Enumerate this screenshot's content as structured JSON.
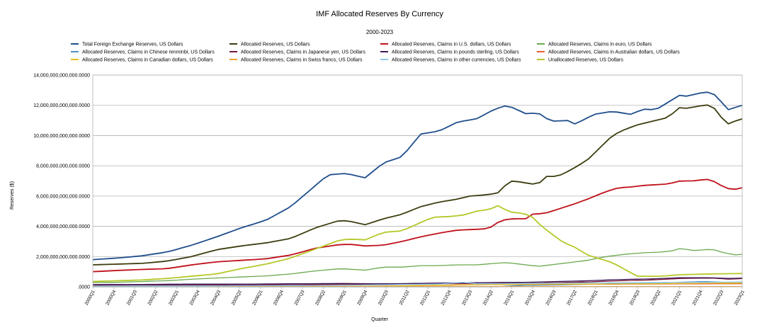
{
  "chart_data": {
    "type": "line",
    "title": "IMF Allocated Reserves By Currency",
    "subtitle": "2000-2023",
    "xlabel": "Quarter",
    "ylabel": "Reserves ($)",
    "ylim": [
      0,
      14000000000000
    ],
    "yticks": [
      0,
      2000000000000,
      4000000000000,
      6000000000000,
      8000000000000,
      10000000000000,
      12000000000000,
      14000000000000
    ],
    "ytick_labels": [
      ".0000",
      "2,000,000,000,000.0000",
      "4,000,000,000,000.0000",
      "6,000,000,000,000.0000",
      "8,000,000,000,000.0000",
      "10,000,000,000,000.0000",
      "12,000,000,000,000.0000",
      "14,000,000,000,000.0000"
    ],
    "grid": true,
    "legend_position": "top",
    "x_start_year": 2000,
    "x_count": 93,
    "x_label_step": 3,
    "x_tick_labels": [
      "2000Q1",
      "2000Q4",
      "2001Q3",
      "2002Q2",
      "2003Q1",
      "2003Q4",
      "2004Q3",
      "2005Q2",
      "2006Q1",
      "2006Q4",
      "2007Q3",
      "2008Q2",
      "2009Q1",
      "2009Q4",
      "2010Q3",
      "2011Q2",
      "2012Q1",
      "2012Q4",
      "2013Q3",
      "2014Q2",
      "2015Q1",
      "2015Q4",
      "2016Q3",
      "2017Q2",
      "2018Q1",
      "2018Q4",
      "2019Q3",
      "2020Q2",
      "2021Q1",
      "2021Q4",
      "2022Q3",
      "2023Q1"
    ],
    "series": [
      {
        "name": "Total Foreign Exchange Reserves, US Dollars",
        "color": "#1f4e8c",
        "anchors": [
          [
            0,
            1.8
          ],
          [
            4,
            1.9
          ],
          [
            8,
            2.05
          ],
          [
            12,
            2.3
          ],
          [
            16,
            2.75
          ],
          [
            20,
            3.3
          ],
          [
            24,
            3.9
          ],
          [
            28,
            4.4
          ],
          [
            32,
            5.3
          ],
          [
            36,
            6.7
          ],
          [
            38,
            7.4
          ],
          [
            41,
            7.5
          ],
          [
            44,
            7.2
          ],
          [
            47,
            8.2
          ],
          [
            50,
            8.6
          ],
          [
            53,
            10.1
          ],
          [
            56,
            10.3
          ],
          [
            59,
            10.9
          ],
          [
            62,
            11.1
          ],
          [
            65,
            11.75
          ],
          [
            67,
            12.0
          ],
          [
            70,
            11.45
          ],
          [
            72,
            11.5
          ],
          [
            74,
            10.95
          ],
          [
            77,
            11.0
          ],
          [
            78,
            10.75
          ],
          [
            81,
            11.4
          ],
          [
            84,
            11.6
          ],
          [
            87,
            11.4
          ],
          [
            89,
            11.75
          ],
          [
            91,
            11.7
          ],
          [
            93,
            12.2
          ],
          [
            95,
            12.7
          ],
          [
            96,
            12.6
          ],
          [
            98,
            12.8
          ],
          [
            100,
            12.9
          ],
          [
            101,
            12.5
          ],
          [
            103,
            11.6
          ],
          [
            104,
            11.9
          ],
          [
            105,
            12.0
          ]
        ]
      },
      {
        "name": "Allocated Reserves, US Dollars",
        "color": "#3d3d10",
        "anchors": [
          [
            0,
            1.45
          ],
          [
            4,
            1.5
          ],
          [
            8,
            1.55
          ],
          [
            12,
            1.7
          ],
          [
            16,
            2.0
          ],
          [
            20,
            2.45
          ],
          [
            24,
            2.7
          ],
          [
            28,
            2.9
          ],
          [
            32,
            3.2
          ],
          [
            36,
            3.9
          ],
          [
            40,
            4.4
          ],
          [
            42,
            4.3
          ],
          [
            44,
            4.1
          ],
          [
            47,
            4.5
          ],
          [
            50,
            4.8
          ],
          [
            53,
            5.3
          ],
          [
            56,
            5.6
          ],
          [
            59,
            5.8
          ],
          [
            61,
            6.0
          ],
          [
            64,
            6.1
          ],
          [
            66,
            6.25
          ],
          [
            67,
            6.95
          ],
          [
            68,
            7.0
          ],
          [
            71,
            6.8
          ],
          [
            72,
            6.75
          ],
          [
            73,
            7.3
          ],
          [
            75,
            7.3
          ],
          [
            76,
            7.45
          ],
          [
            78,
            7.9
          ],
          [
            80,
            8.4
          ],
          [
            82,
            9.2
          ],
          [
            84,
            10.0
          ],
          [
            86,
            10.4
          ],
          [
            88,
            10.7
          ],
          [
            91,
            11.0
          ],
          [
            93,
            11.2
          ],
          [
            95,
            11.9
          ],
          [
            96,
            11.8
          ],
          [
            98,
            11.95
          ],
          [
            100,
            12.05
          ],
          [
            102,
            11.0
          ],
          [
            103,
            10.7
          ],
          [
            104,
            11.0
          ],
          [
            105,
            11.1
          ]
        ]
      },
      {
        "name": "Allocated Reserves, Claims in U.S. dollars, US Dollars",
        "color": "#c0101a",
        "anchors": [
          [
            0,
            1.0
          ],
          [
            4,
            1.08
          ],
          [
            8,
            1.15
          ],
          [
            12,
            1.2
          ],
          [
            16,
            1.45
          ],
          [
            20,
            1.65
          ],
          [
            24,
            1.75
          ],
          [
            28,
            1.85
          ],
          [
            32,
            2.1
          ],
          [
            36,
            2.55
          ],
          [
            40,
            2.8
          ],
          [
            42,
            2.8
          ],
          [
            44,
            2.7
          ],
          [
            47,
            2.75
          ],
          [
            50,
            3.0
          ],
          [
            53,
            3.3
          ],
          [
            56,
            3.55
          ],
          [
            59,
            3.75
          ],
          [
            62,
            3.8
          ],
          [
            64,
            3.85
          ],
          [
            66,
            4.4
          ],
          [
            68,
            4.5
          ],
          [
            70,
            4.5
          ],
          [
            71,
            4.8
          ],
          [
            73,
            4.85
          ],
          [
            75,
            5.1
          ],
          [
            78,
            5.5
          ],
          [
            80,
            5.8
          ],
          [
            83,
            6.3
          ],
          [
            85,
            6.55
          ],
          [
            87,
            6.6
          ],
          [
            89,
            6.7
          ],
          [
            91,
            6.75
          ],
          [
            93,
            6.8
          ],
          [
            95,
            7.0
          ],
          [
            97,
            7.0
          ],
          [
            99,
            7.1
          ],
          [
            100,
            7.1
          ],
          [
            101,
            6.8
          ],
          [
            103,
            6.45
          ],
          [
            104,
            6.45
          ],
          [
            105,
            6.55
          ]
        ]
      },
      {
        "name": "Allocated Reserves, Claims in euro, US Dollars",
        "color": "#6aa84f",
        "anchors": [
          [
            0,
            0.28
          ],
          [
            4,
            0.3
          ],
          [
            8,
            0.35
          ],
          [
            12,
            0.4
          ],
          [
            16,
            0.5
          ],
          [
            20,
            0.58
          ],
          [
            24,
            0.65
          ],
          [
            28,
            0.72
          ],
          [
            32,
            0.85
          ],
          [
            36,
            1.05
          ],
          [
            40,
            1.2
          ],
          [
            42,
            1.15
          ],
          [
            44,
            1.1
          ],
          [
            47,
            1.3
          ],
          [
            50,
            1.3
          ],
          [
            53,
            1.4
          ],
          [
            56,
            1.4
          ],
          [
            59,
            1.45
          ],
          [
            62,
            1.45
          ],
          [
            65,
            1.55
          ],
          [
            67,
            1.6
          ],
          [
            70,
            1.45
          ],
          [
            72,
            1.35
          ],
          [
            74,
            1.45
          ],
          [
            77,
            1.6
          ],
          [
            80,
            1.75
          ],
          [
            83,
            2.0
          ],
          [
            86,
            2.15
          ],
          [
            89,
            2.25
          ],
          [
            92,
            2.3
          ],
          [
            94,
            2.4
          ],
          [
            95,
            2.55
          ],
          [
            97,
            2.4
          ],
          [
            99,
            2.45
          ],
          [
            100,
            2.5
          ],
          [
            102,
            2.25
          ],
          [
            104,
            2.1
          ],
          [
            105,
            2.15
          ]
        ]
      },
      {
        "name": "Allocated Reserves, Claims in Chinese renminbi, US Dollars",
        "color": "#4a90c8",
        "anchors": [
          [
            0,
            0.0
          ],
          [
            66,
            0.0
          ],
          [
            67,
            0.05
          ],
          [
            70,
            0.1
          ],
          [
            75,
            0.12
          ],
          [
            78,
            0.15
          ],
          [
            83,
            0.2
          ],
          [
            88,
            0.22
          ],
          [
            92,
            0.25
          ],
          [
            95,
            0.3
          ],
          [
            99,
            0.35
          ],
          [
            102,
            0.3
          ],
          [
            105,
            0.3
          ]
        ]
      },
      {
        "name": "Allocated Reserves, Claims in Japanese yen, US Dollars",
        "color": "#7a1836",
        "anchors": [
          [
            0,
            0.08
          ],
          [
            8,
            0.1
          ],
          [
            16,
            0.12
          ],
          [
            24,
            0.12
          ],
          [
            32,
            0.14
          ],
          [
            40,
            0.16
          ],
          [
            48,
            0.18
          ],
          [
            56,
            0.2
          ],
          [
            64,
            0.22
          ],
          [
            70,
            0.24
          ],
          [
            75,
            0.28
          ],
          [
            80,
            0.32
          ],
          [
            85,
            0.4
          ],
          [
            90,
            0.45
          ],
          [
            95,
            0.55
          ],
          [
            100,
            0.58
          ],
          [
            103,
            0.5
          ],
          [
            105,
            0.55
          ]
        ]
      },
      {
        "name": "Allocated Reserves, Claims in pounds sterling, US Dollars",
        "color": "#3d1a5c",
        "anchors": [
          [
            0,
            0.15
          ],
          [
            8,
            0.16
          ],
          [
            16,
            0.18
          ],
          [
            24,
            0.18
          ],
          [
            32,
            0.2
          ],
          [
            40,
            0.22
          ],
          [
            48,
            0.2
          ],
          [
            56,
            0.25
          ],
          [
            64,
            0.28
          ],
          [
            70,
            0.3
          ],
          [
            75,
            0.35
          ],
          [
            80,
            0.4
          ],
          [
            85,
            0.48
          ],
          [
            90,
            0.52
          ],
          [
            95,
            0.6
          ],
          [
            100,
            0.6
          ],
          [
            103,
            0.55
          ],
          [
            105,
            0.58
          ]
        ]
      },
      {
        "name": "Allocated Reserves, Claims in Australian dollars, US Dollars",
        "color": "#e8602c",
        "anchors": [
          [
            0,
            0.02
          ],
          [
            40,
            0.03
          ],
          [
            48,
            0.05
          ],
          [
            56,
            0.1
          ],
          [
            64,
            0.14
          ],
          [
            70,
            0.15
          ],
          [
            80,
            0.17
          ],
          [
            90,
            0.18
          ],
          [
            100,
            0.2
          ],
          [
            105,
            0.2
          ]
        ]
      },
      {
        "name": "Allocated Reserves, Claims in Canadian dollars, US Dollars",
        "color": "#e6c020",
        "anchors": [
          [
            0,
            0.02
          ],
          [
            40,
            0.03
          ],
          [
            48,
            0.06
          ],
          [
            56,
            0.11
          ],
          [
            64,
            0.15
          ],
          [
            70,
            0.16
          ],
          [
            80,
            0.18
          ],
          [
            90,
            0.2
          ],
          [
            100,
            0.25
          ],
          [
            105,
            0.25
          ]
        ]
      },
      {
        "name": "Allocated Reserves, Claims in Swiss francs, US Dollars",
        "color": "#f0a030",
        "anchors": [
          [
            0,
            0.03
          ],
          [
            20,
            0.03
          ],
          [
            40,
            0.03
          ],
          [
            60,
            0.02
          ],
          [
            80,
            0.02
          ],
          [
            105,
            0.02
          ]
        ]
      },
      {
        "name": "Allocated Reserves, Claims in other currencies, US Dollars",
        "color": "#8ec8ec",
        "anchors": [
          [
            0,
            0.05
          ],
          [
            16,
            0.06
          ],
          [
            32,
            0.08
          ],
          [
            40,
            0.1
          ],
          [
            48,
            0.14
          ],
          [
            56,
            0.18
          ],
          [
            60,
            0.3
          ],
          [
            62,
            0.2
          ],
          [
            70,
            0.22
          ],
          [
            80,
            0.25
          ],
          [
            90,
            0.28
          ],
          [
            100,
            0.3
          ],
          [
            105,
            0.32
          ]
        ]
      },
      {
        "name": "Unallocated Reserves, US Dollars",
        "color": "#b5c828",
        "anchors": [
          [
            0,
            0.35
          ],
          [
            4,
            0.4
          ],
          [
            8,
            0.45
          ],
          [
            12,
            0.55
          ],
          [
            16,
            0.7
          ],
          [
            20,
            0.85
          ],
          [
            24,
            1.2
          ],
          [
            28,
            1.5
          ],
          [
            32,
            1.9
          ],
          [
            36,
            2.5
          ],
          [
            40,
            3.1
          ],
          [
            42,
            3.15
          ],
          [
            44,
            3.1
          ],
          [
            47,
            3.6
          ],
          [
            50,
            3.7
          ],
          [
            53,
            4.25
          ],
          [
            55,
            4.6
          ],
          [
            58,
            4.65
          ],
          [
            60,
            4.75
          ],
          [
            62,
            5.0
          ],
          [
            64,
            5.1
          ],
          [
            66,
            5.45
          ],
          [
            67,
            4.9
          ],
          [
            68,
            4.95
          ],
          [
            70,
            4.8
          ],
          [
            71,
            4.65
          ],
          [
            72,
            4.2
          ],
          [
            74,
            3.55
          ],
          [
            76,
            2.95
          ],
          [
            78,
            2.6
          ],
          [
            80,
            2.1
          ],
          [
            84,
            1.6
          ],
          [
            88,
            0.7
          ],
          [
            92,
            0.7
          ],
          [
            95,
            0.8
          ],
          [
            100,
            0.85
          ],
          [
            105,
            0.88
          ]
        ]
      }
    ]
  }
}
